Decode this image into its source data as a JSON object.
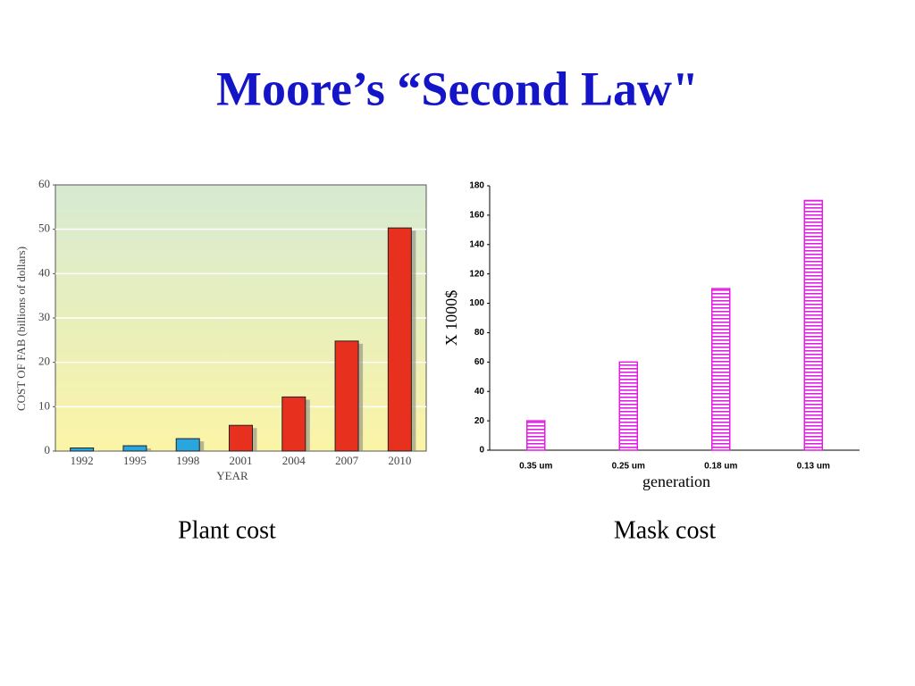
{
  "title": "Moore’s “Second Law\"",
  "chart_data": [
    {
      "type": "bar",
      "caption": "Plant cost",
      "y_label": "COST OF  FAB (billions of dollars)",
      "x_label": "YEAR",
      "categories": [
        "1992",
        "1995",
        "1998",
        "2001",
        "2004",
        "2007",
        "2010"
      ],
      "values": [
        0.7,
        1.2,
        2.8,
        5.8,
        12.2,
        24.8,
        50.3
      ],
      "colors": [
        "#2aa6de",
        "#2aa6de",
        "#2aa6de",
        "#e8301e",
        "#e8301e",
        "#e8301e",
        "#e8301e"
      ],
      "ylim": [
        0,
        60
      ],
      "yticks": [
        0,
        10,
        20,
        30,
        40,
        50,
        60
      ],
      "grid": true
    },
    {
      "type": "bar",
      "caption": "Mask cost",
      "y_label": "X 1000$",
      "x_label": "generation",
      "categories": [
        "0.35 um",
        "0.25 um",
        "0.18 um",
        "0.13 um"
      ],
      "values": [
        20,
        60,
        110,
        170
      ],
      "color": "#e020e0",
      "ylim": [
        0,
        180
      ],
      "yticks": [
        0,
        20,
        40,
        60,
        80,
        100,
        120,
        140,
        160,
        180
      ],
      "grid": false
    }
  ]
}
